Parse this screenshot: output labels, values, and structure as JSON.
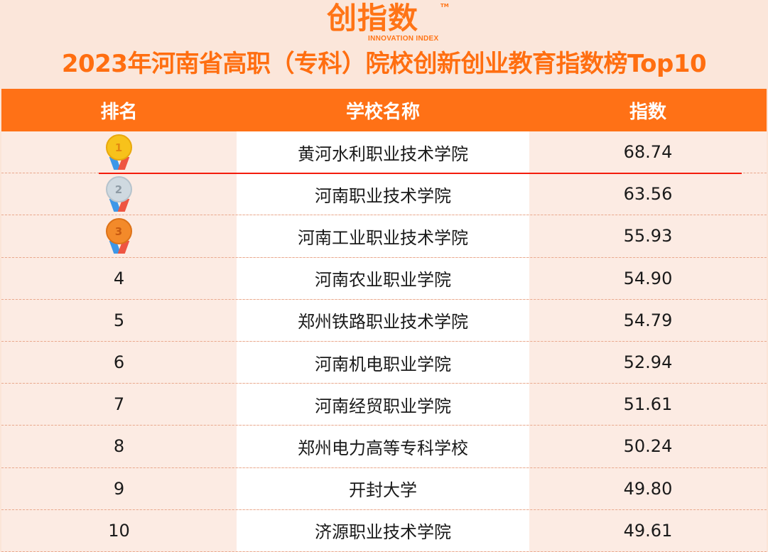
{
  "logo": {
    "cn": "创指数",
    "en": "INNOVATION INDEX",
    "tm": "TM"
  },
  "title": "2023年河南省高职（专科）院校创新创业教育指数榜Top10",
  "colors": {
    "accent": "#ff7116",
    "title": "#ff6e10",
    "highlight_line": "#f31c0c"
  },
  "table": {
    "headers": [
      "排名",
      "学校名称",
      "指数"
    ],
    "rows": [
      {
        "rank": "1",
        "medal": "gold-medal-icon",
        "name": "黄河水利职业技术学院",
        "index": "68.74"
      },
      {
        "rank": "2",
        "medal": "silver-medal-icon",
        "name": "河南职业技术学院",
        "index": "63.56"
      },
      {
        "rank": "3",
        "medal": "bronze-medal-icon",
        "name": "河南工业职业技术学院",
        "index": "55.93"
      },
      {
        "rank": "4",
        "name": "河南农业职业学院",
        "index": "54.90"
      },
      {
        "rank": "5",
        "name": "郑州铁路职业技术学院",
        "index": "54.79"
      },
      {
        "rank": "6",
        "name": "河南机电职业学院",
        "index": "52.94"
      },
      {
        "rank": "7",
        "name": "河南经贸职业学院",
        "index": "51.61"
      },
      {
        "rank": "8",
        "name": "郑州电力高等专科学校",
        "index": "50.24"
      },
      {
        "rank": "9",
        "name": "开封大学",
        "index": "49.80"
      },
      {
        "rank": "10",
        "name": "济源职业技术学院",
        "index": "49.61"
      }
    ]
  }
}
